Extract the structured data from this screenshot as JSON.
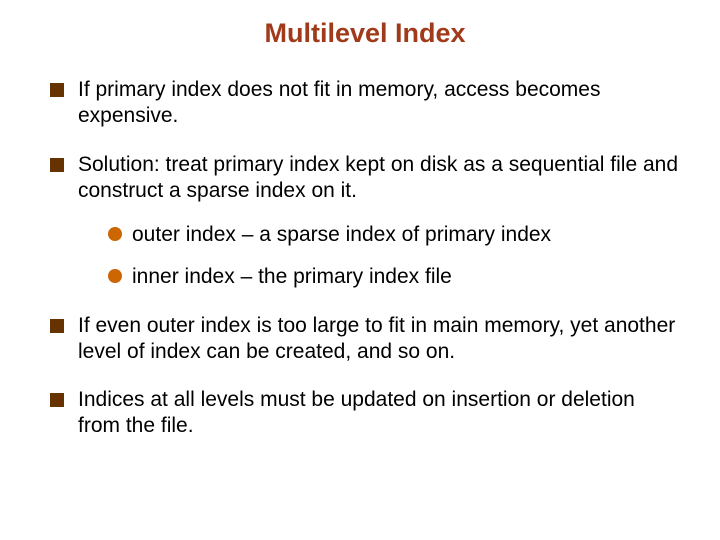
{
  "colors": {
    "title": "#a03a1a",
    "body_text": "#000000",
    "square_bullet": "#663300",
    "round_bullet": "#cc6600",
    "background": "#ffffff"
  },
  "typography": {
    "title_fontsize": 27,
    "body_fontsize": 21,
    "title_weight": "bold",
    "body_weight": "normal",
    "font_family": "Arial"
  },
  "title": "Multilevel Index",
  "bullets": [
    {
      "text": "If primary index does not fit in memory, access becomes expensive.",
      "subs": []
    },
    {
      "text": "Solution: treat primary index kept on disk as a sequential file and construct a sparse index on it.",
      "subs": [
        {
          "text": "outer index – a sparse index of primary index"
        },
        {
          "text": "inner index – the primary index file"
        }
      ]
    },
    {
      "text": "If even outer index is too large to fit in main memory, yet another level of index can be created, and so on.",
      "subs": []
    },
    {
      "text": "Indices at all levels must be updated on insertion or deletion from the file.",
      "subs": []
    }
  ]
}
